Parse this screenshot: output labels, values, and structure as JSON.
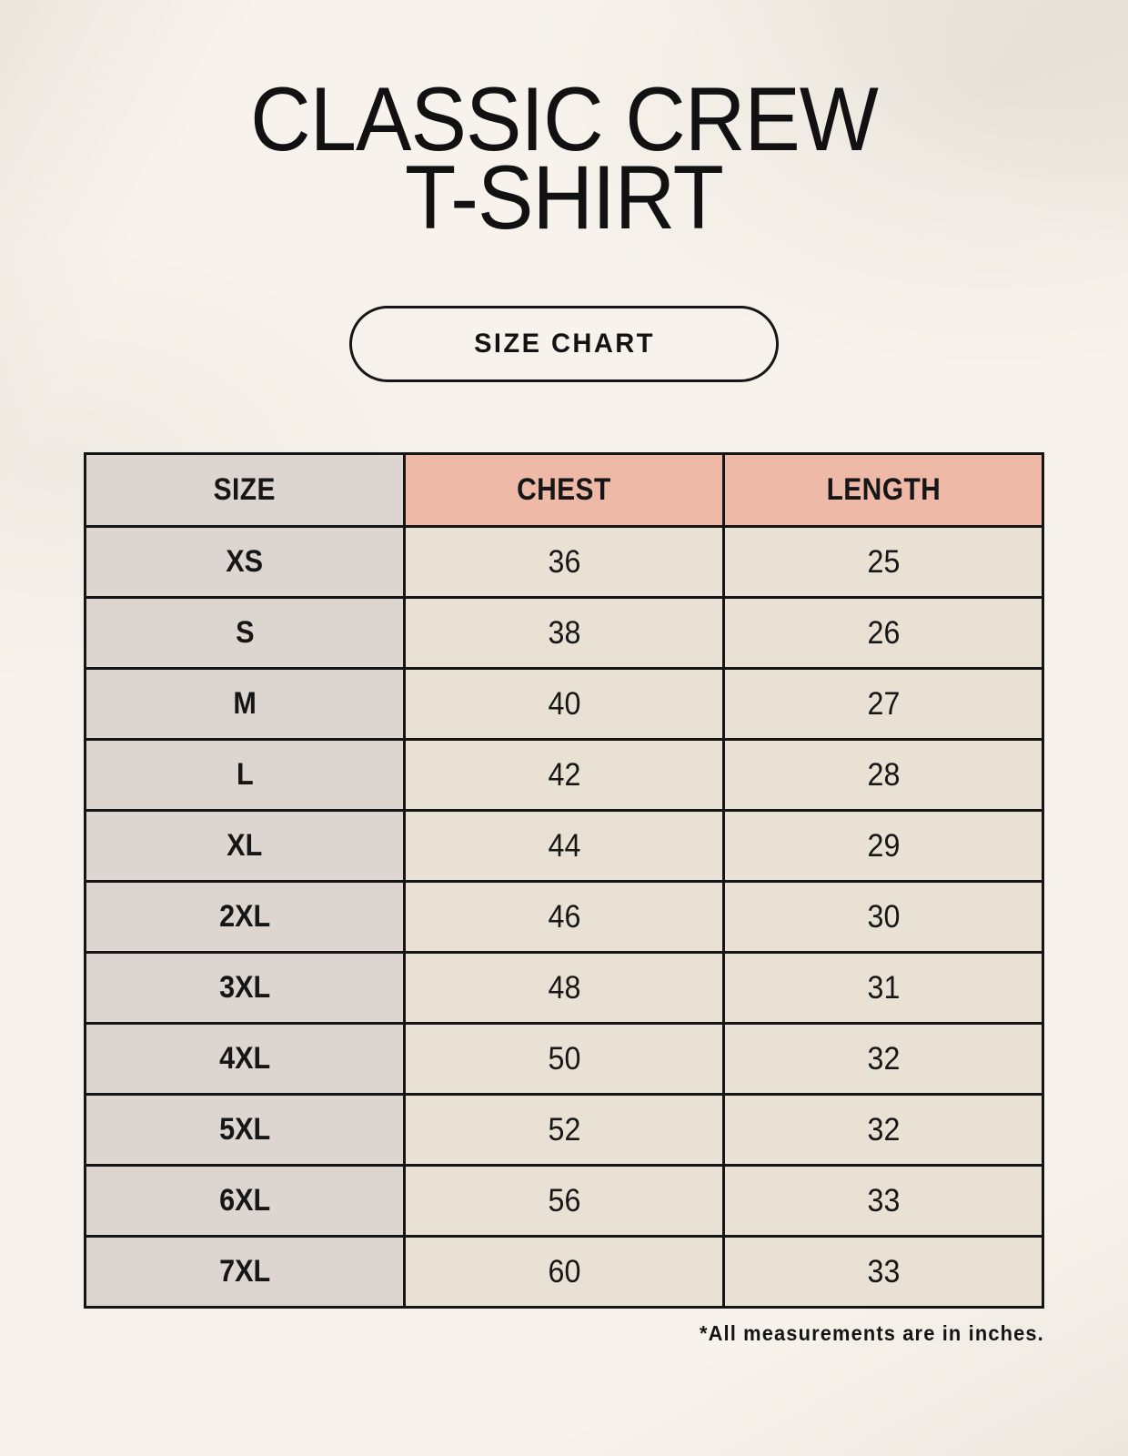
{
  "title": {
    "line1": "CLASSIC CREW",
    "line2": "T-SHIRT"
  },
  "badge": {
    "label": "SIZE CHART"
  },
  "footnote": "*All measurements are in inches.",
  "chart_data": {
    "type": "table",
    "title": "CLASSIC CREW T-SHIRT",
    "columns": [
      "SIZE",
      "CHEST",
      "LENGTH"
    ],
    "rows": [
      [
        "XS",
        "36",
        "25"
      ],
      [
        "S",
        "38",
        "26"
      ],
      [
        "M",
        "40",
        "27"
      ],
      [
        "L",
        "42",
        "28"
      ],
      [
        "XL",
        "44",
        "29"
      ],
      [
        "2XL",
        "46",
        "30"
      ],
      [
        "3XL",
        "48",
        "31"
      ],
      [
        "4XL",
        "50",
        "32"
      ],
      [
        "5XL",
        "52",
        "32"
      ],
      [
        "6XL",
        "56",
        "33"
      ],
      [
        "7XL",
        "60",
        "33"
      ]
    ],
    "units": "inches"
  },
  "colors": {
    "background": "#f7f3ec",
    "header_accent": "#eeb9a7",
    "size_column": "#dcd5d0",
    "data_cell": "#e9e1d4",
    "border": "#151515",
    "text": "#161616"
  }
}
